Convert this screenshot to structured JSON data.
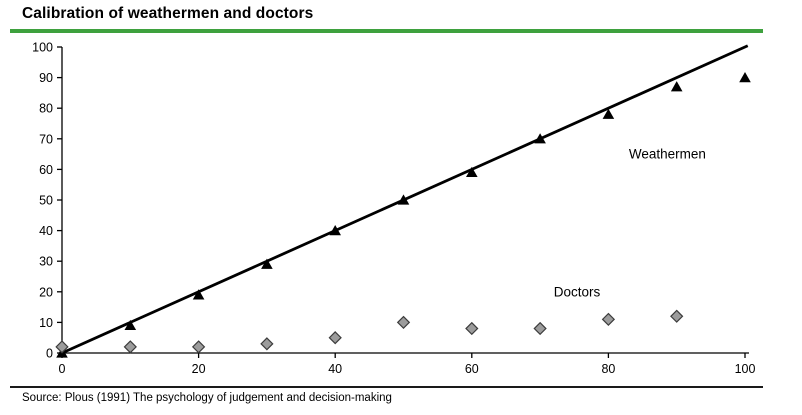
{
  "title": "Calibration of weathermen and doctors",
  "source": "Source: Plous (1991) The psychology of judgement and decision-making",
  "colors": {
    "title_rule": "#3ea13e",
    "axis": "#000000",
    "reference_line": "#000000",
    "weathermen_marker": "#000000",
    "doctors_fill": "#9c9c9c",
    "doctors_stroke": "#3c3c3c",
    "text": "#000000",
    "bottom_rule": "#1a1a1a"
  },
  "chart_data": {
    "type": "scatter",
    "title": "Calibration of weathermen and doctors",
    "xlabel": "",
    "ylabel": "",
    "xlim": [
      0,
      100
    ],
    "ylim": [
      0,
      100
    ],
    "x_ticks": [
      0,
      20,
      40,
      60,
      80,
      100
    ],
    "y_ticks": [
      0,
      10,
      20,
      30,
      40,
      50,
      60,
      70,
      80,
      90,
      100
    ],
    "grid": false,
    "legend_position": "inline-annotations",
    "reference_line": {
      "x": [
        0,
        100.4
      ],
      "y": [
        0,
        100.4
      ]
    },
    "series": [
      {
        "name": "Weathermen",
        "marker": "triangle",
        "x": [
          0,
          10,
          20,
          30,
          40,
          50,
          60,
          70,
          80,
          90,
          100
        ],
        "values": [
          0,
          9,
          19,
          29,
          40,
          50,
          59,
          70,
          78,
          87,
          90
        ]
      },
      {
        "name": "Doctors",
        "marker": "diamond",
        "x": [
          0,
          10,
          20,
          30,
          40,
          50,
          60,
          70,
          80,
          90
        ],
        "values": [
          2,
          2,
          2,
          3,
          5,
          10,
          8,
          8,
          11,
          12
        ]
      }
    ],
    "annotations": [
      {
        "text": "Weathermen",
        "x": 83,
        "y": 65
      },
      {
        "text": "Doctors",
        "x": 72,
        "y": 20
      }
    ]
  }
}
